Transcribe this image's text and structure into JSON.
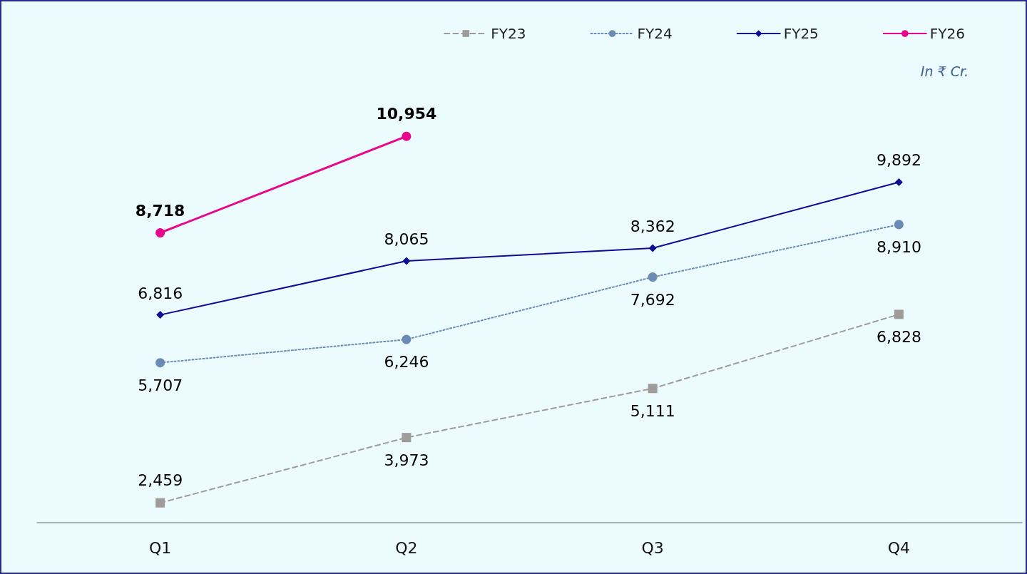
{
  "chart_data": {
    "type": "line",
    "categories": [
      "Q1",
      "Q2",
      "Q3",
      "Q4"
    ],
    "series": [
      {
        "name": "FY23",
        "color": "#a09b9b",
        "values": [
          2459,
          3973,
          5111,
          6828
        ],
        "value_labels": [
          "2,459",
          "3,973",
          "5,111",
          "6,828"
        ],
        "line_style": "dashed",
        "marker": "square"
      },
      {
        "name": "FY24",
        "color": "#6a8cb4",
        "values": [
          5707,
          6246,
          7692,
          8910
        ],
        "value_labels": [
          "5,707",
          "6,246",
          "7,692",
          "8,910"
        ],
        "line_style": "dotted",
        "marker": "circle"
      },
      {
        "name": "FY25",
        "color": "#0c0c96",
        "values": [
          6816,
          8065,
          8362,
          9892
        ],
        "value_labels": [
          "6,816",
          "8,065",
          "8,362",
          "9,892"
        ],
        "line_style": "solid",
        "marker": "diamond"
      },
      {
        "name": "FY26",
        "color": "#e8068c",
        "values": [
          8718,
          10954,
          null,
          null
        ],
        "value_labels": [
          "8,718",
          "10,954",
          null,
          null
        ],
        "line_style": "solid",
        "marker": "circle"
      }
    ],
    "tick_labels": "x",
    "legend": "top right",
    "annotations": [
      "In ₹ Cr."
    ]
  }
}
